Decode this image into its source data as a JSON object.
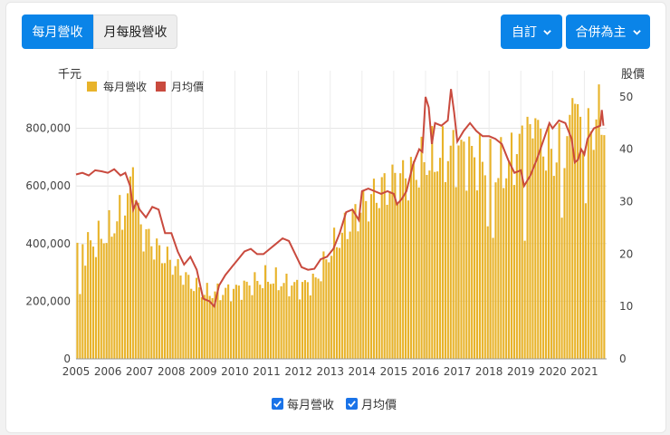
{
  "tabs": {
    "active": "每月營收",
    "inactive": "月每股營收"
  },
  "dropdowns": {
    "period": "自訂",
    "scope": "合併為主"
  },
  "axis": {
    "left_unit": "千元",
    "right_unit": "股價"
  },
  "legend": {
    "revenue": "每月營收",
    "price": "月均價"
  },
  "toggles": {
    "revenue": "每月營收",
    "price": "月均價"
  },
  "colors": {
    "revenue": "#e8b32a",
    "price": "#c94a3e",
    "accent": "#0a84e8"
  },
  "chart_data": {
    "type": "bar",
    "x_range": [
      2005,
      2021.7
    ],
    "x_ticks": [
      "2005",
      "2006",
      "2007",
      "2008",
      "2009",
      "2010",
      "2011",
      "2012",
      "2013",
      "2014",
      "2015",
      "2016",
      "2017",
      "2018",
      "2019",
      "2020",
      "2021"
    ],
    "y_left": {
      "label": "千元",
      "lim": [
        0,
        1000000
      ],
      "ticks": [
        "0",
        "200,000",
        "400,000",
        "600,000",
        "800,000"
      ]
    },
    "y_right": {
      "label": "股價",
      "lim": [
        0,
        55
      ],
      "ticks": [
        "0",
        "10",
        "20",
        "30",
        "40",
        "50"
      ]
    },
    "grid": true,
    "legend_position": "top-left",
    "revenue_anchors": [
      [
        2005.0,
        380000
      ],
      [
        2005.5,
        400000
      ],
      [
        2006.0,
        440000
      ],
      [
        2006.5,
        520000
      ],
      [
        2006.75,
        600000
      ],
      [
        2007.0,
        450000
      ],
      [
        2007.5,
        380000
      ],
      [
        2008.0,
        330000
      ],
      [
        2008.5,
        270000
      ],
      [
        2009.0,
        230000
      ],
      [
        2009.5,
        230000
      ],
      [
        2010.0,
        240000
      ],
      [
        2010.5,
        260000
      ],
      [
        2011.0,
        280000
      ],
      [
        2011.5,
        260000
      ],
      [
        2012.0,
        250000
      ],
      [
        2012.5,
        270000
      ],
      [
        2013.0,
        380000
      ],
      [
        2013.5,
        460000
      ],
      [
        2014.0,
        530000
      ],
      [
        2014.5,
        580000
      ],
      [
        2015.0,
        620000
      ],
      [
        2015.5,
        640000
      ],
      [
        2016.0,
        690000
      ],
      [
        2016.5,
        700000
      ],
      [
        2017.0,
        720000
      ],
      [
        2017.5,
        700000
      ],
      [
        2018.0,
        650000
      ],
      [
        2018.5,
        660000
      ],
      [
        2019.0,
        750000
      ],
      [
        2019.5,
        760000
      ],
      [
        2020.0,
        700000
      ],
      [
        2020.5,
        760000
      ],
      [
        2020.8,
        820000
      ],
      [
        2021.1,
        780000
      ],
      [
        2021.4,
        840000
      ]
    ],
    "revenue_series": [
      {
        "x": 2006.77,
        "y": 665000
      },
      {
        "x": 2019.2,
        "y": 840000
      },
      {
        "x": 2019.45,
        "y": 835000
      },
      {
        "x": 2020.55,
        "y": 905000
      },
      {
        "x": 2020.65,
        "y": 885000
      },
      {
        "x": 2020.85,
        "y": 840000
      },
      {
        "x": 2021.0,
        "y": 540000
      },
      {
        "x": 2021.1,
        "y": 870000
      },
      {
        "x": 2018.1,
        "y": 420000
      },
      {
        "x": 2019.1,
        "y": 410000
      },
      {
        "x": 2020.25,
        "y": 490000
      },
      {
        "x": 2005.1,
        "y": 225000
      },
      {
        "x": 2017.9,
        "y": 460000
      }
    ],
    "price_series": [
      [
        2005.0,
        35.2
      ],
      [
        2005.2,
        35.5
      ],
      [
        2005.4,
        35.0
      ],
      [
        2005.6,
        36.0
      ],
      [
        2005.8,
        35.8
      ],
      [
        2006.0,
        35.5
      ],
      [
        2006.2,
        36.2
      ],
      [
        2006.4,
        35.0
      ],
      [
        2006.55,
        35.5
      ],
      [
        2006.7,
        33.0
      ],
      [
        2006.8,
        28.5
      ],
      [
        2006.9,
        30.0
      ],
      [
        2007.0,
        28.5
      ],
      [
        2007.2,
        27.0
      ],
      [
        2007.4,
        29.0
      ],
      [
        2007.6,
        28.5
      ],
      [
        2007.8,
        24.0
      ],
      [
        2008.0,
        24.0
      ],
      [
        2008.2,
        20.5
      ],
      [
        2008.4,
        18.0
      ],
      [
        2008.6,
        19.5
      ],
      [
        2008.8,
        17.0
      ],
      [
        2009.0,
        11.5
      ],
      [
        2009.2,
        11.0
      ],
      [
        2009.35,
        10.0
      ],
      [
        2009.5,
        14.0
      ],
      [
        2009.7,
        16.0
      ],
      [
        2009.9,
        17.5
      ],
      [
        2010.1,
        19.0
      ],
      [
        2010.3,
        20.5
      ],
      [
        2010.5,
        21.0
      ],
      [
        2010.7,
        20.0
      ],
      [
        2010.9,
        20.0
      ],
      [
        2011.1,
        21.0
      ],
      [
        2011.3,
        22.0
      ],
      [
        2011.5,
        23.0
      ],
      [
        2011.7,
        22.5
      ],
      [
        2011.9,
        20.0
      ],
      [
        2012.1,
        17.5
      ],
      [
        2012.3,
        17.0
      ],
      [
        2012.5,
        17.2
      ],
      [
        2012.7,
        19.0
      ],
      [
        2012.9,
        19.5
      ],
      [
        2013.1,
        21.0
      ],
      [
        2013.3,
        24.0
      ],
      [
        2013.5,
        28.0
      ],
      [
        2013.7,
        28.5
      ],
      [
        2013.9,
        26.5
      ],
      [
        2014.0,
        32.0
      ],
      [
        2014.2,
        32.5
      ],
      [
        2014.4,
        32.0
      ],
      [
        2014.6,
        31.5
      ],
      [
        2014.8,
        32.0
      ],
      [
        2015.0,
        31.5
      ],
      [
        2015.1,
        29.5
      ],
      [
        2015.25,
        30.5
      ],
      [
        2015.4,
        32.0
      ],
      [
        2015.6,
        37.0
      ],
      [
        2015.8,
        40.0
      ],
      [
        2015.9,
        39.5
      ],
      [
        2016.0,
        50.0
      ],
      [
        2016.1,
        48.0
      ],
      [
        2016.2,
        41.0
      ],
      [
        2016.3,
        45.0
      ],
      [
        2016.5,
        44.5
      ],
      [
        2016.7,
        45.5
      ],
      [
        2016.8,
        51.5
      ],
      [
        2016.9,
        47.0
      ],
      [
        2017.0,
        41.5
      ],
      [
        2017.2,
        43.5
      ],
      [
        2017.4,
        45.0
      ],
      [
        2017.6,
        43.5
      ],
      [
        2017.8,
        42.5
      ],
      [
        2018.0,
        42.5
      ],
      [
        2018.2,
        42.0
      ],
      [
        2018.4,
        41.0
      ],
      [
        2018.6,
        38.0
      ],
      [
        2018.8,
        35.5
      ],
      [
        2019.0,
        36.0
      ],
      [
        2019.1,
        33.0
      ],
      [
        2019.3,
        35.0
      ],
      [
        2019.5,
        38.0
      ],
      [
        2019.7,
        41.5
      ],
      [
        2019.9,
        45.0
      ],
      [
        2020.0,
        44.0
      ],
      [
        2020.2,
        45.5
      ],
      [
        2020.4,
        45.0
      ],
      [
        2020.6,
        42.0
      ],
      [
        2020.7,
        37.5
      ],
      [
        2020.8,
        38.0
      ],
      [
        2020.9,
        40.0
      ],
      [
        2021.0,
        39.0
      ],
      [
        2021.1,
        42.0
      ],
      [
        2021.3,
        44.0
      ],
      [
        2021.5,
        44.5
      ],
      [
        2021.55,
        47.5
      ],
      [
        2021.6,
        44.5
      ]
    ]
  }
}
